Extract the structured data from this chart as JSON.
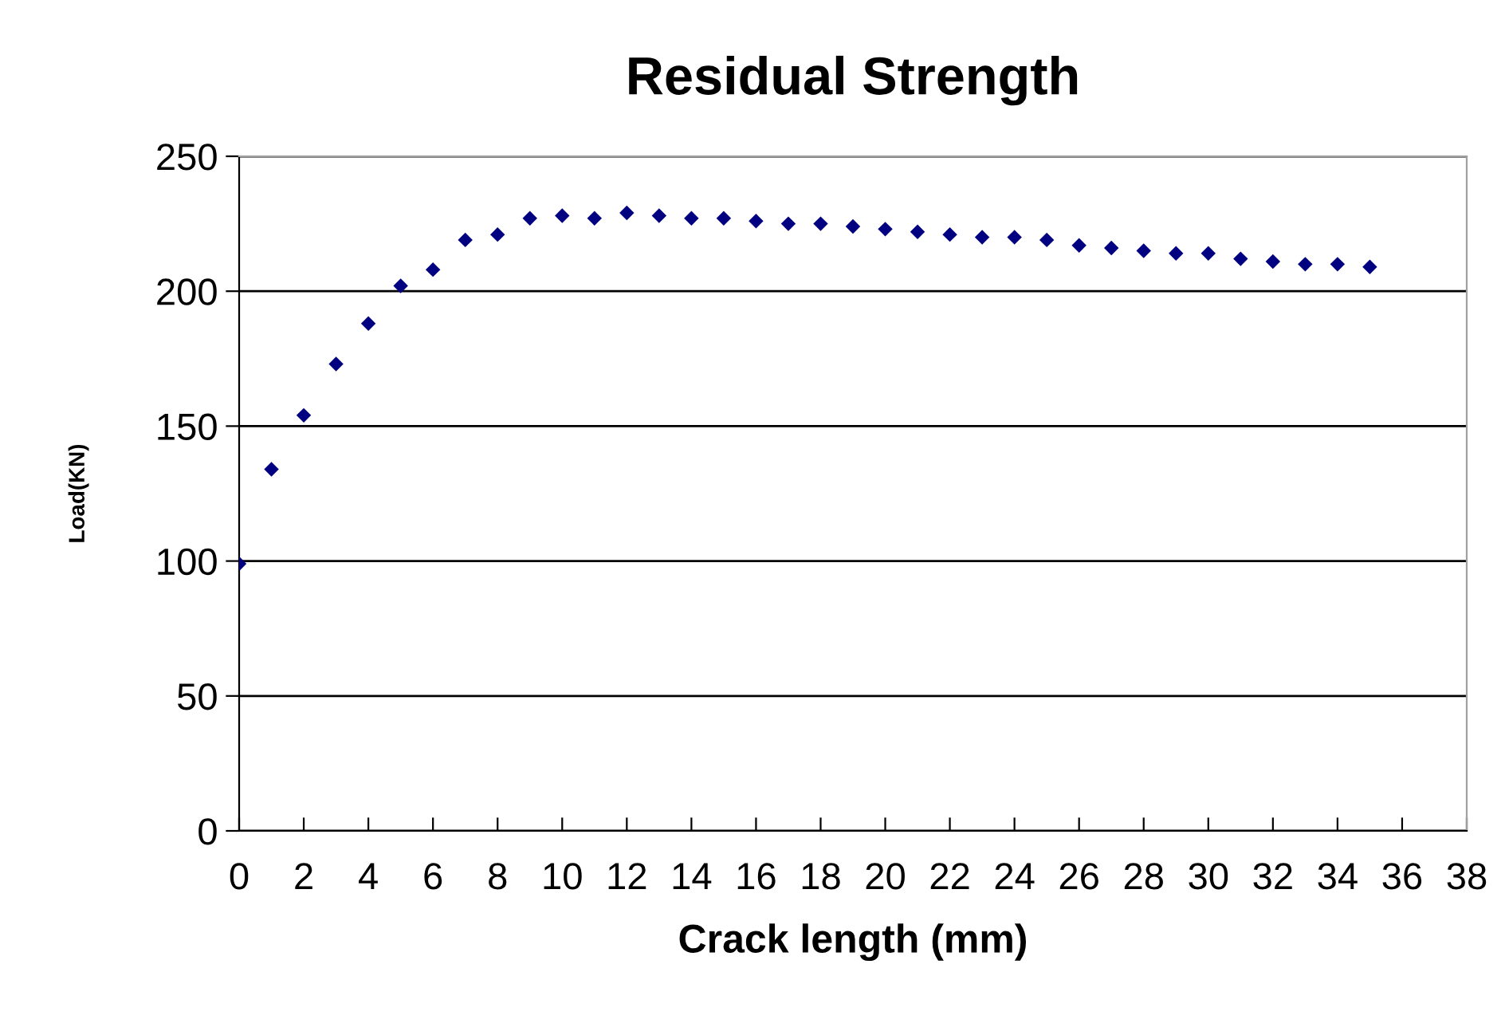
{
  "chart_data": {
    "type": "scatter",
    "title": "Residual Strength",
    "xlabel": "Crack length (mm)",
    "ylabel": "Load(KN)",
    "x": [
      0,
      1,
      2,
      3,
      4,
      5,
      6,
      7,
      8,
      9,
      10,
      11,
      12,
      13,
      14,
      15,
      16,
      17,
      18,
      19,
      20,
      21,
      22,
      23,
      24,
      25,
      26,
      27,
      28,
      29,
      30,
      31,
      32,
      33,
      34,
      35
    ],
    "series": [
      {
        "color": "#000080",
        "values": [
          99,
          134,
          154,
          173,
          188,
          202,
          208,
          219,
          221,
          227,
          228,
          227,
          229,
          228,
          227,
          227,
          226,
          225,
          225,
          224,
          223,
          222,
          221,
          220,
          220,
          219,
          217,
          216,
          215,
          214,
          214,
          212,
          211,
          210,
          210,
          209
        ]
      }
    ],
    "marker": "diamond",
    "xlim": [
      0,
      38
    ],
    "xticks": [
      0,
      2,
      4,
      6,
      8,
      10,
      12,
      14,
      16,
      18,
      20,
      22,
      24,
      26,
      28,
      30,
      32,
      34,
      36,
      38
    ],
    "ylim": [
      0,
      250
    ],
    "yticks": [
      0,
      50,
      100,
      150,
      200,
      250
    ],
    "grid": "y",
    "legend": false
  }
}
